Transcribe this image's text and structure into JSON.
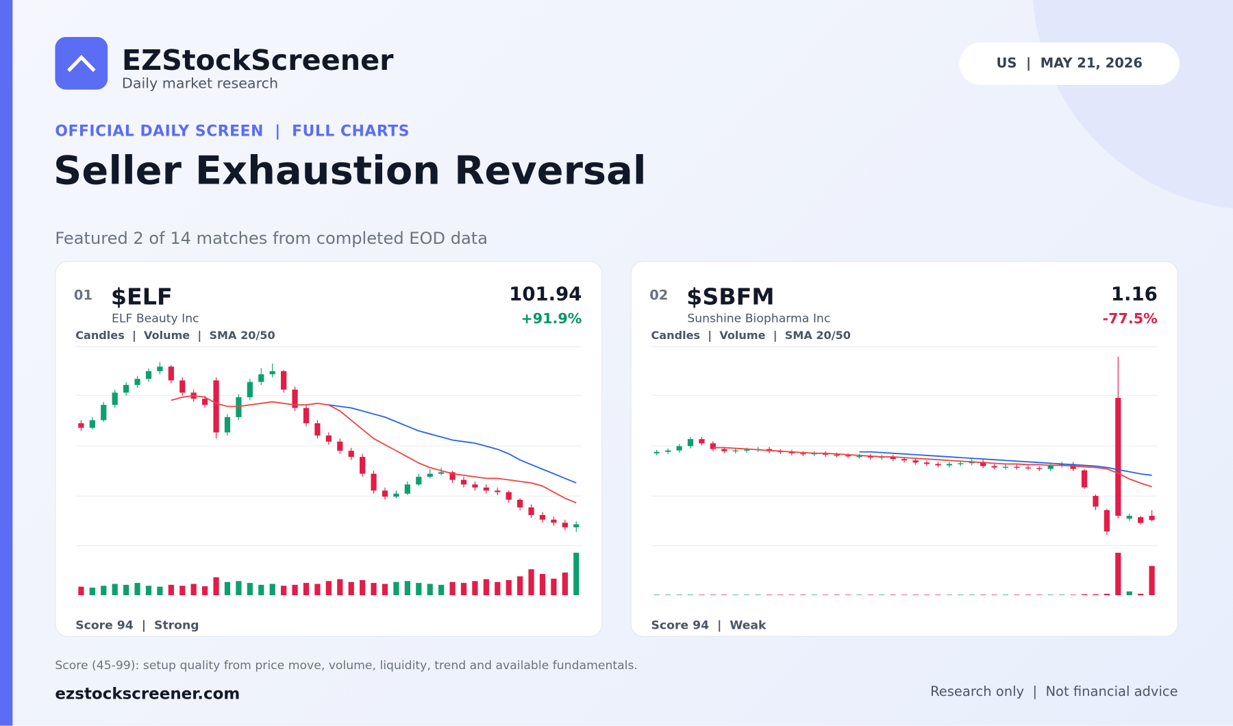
{
  "header": {
    "brand": "EZStockScreener",
    "tagline": "Daily market research",
    "pill": "US  |  MAY 21, 2026"
  },
  "screen": {
    "kicker": "OFFICIAL DAILY SCREEN  |  FULL CHARTS",
    "title": "Seller Exhaustion Reversal",
    "subtitle": "Featured 2 of 14 matches from completed EOD data"
  },
  "cards": [
    {
      "rank": "01",
      "ticker": "$ELF",
      "company": "ELF Beauty Inc",
      "price": "101.94",
      "change": "+91.9%",
      "legend": "Candles  |  Volume  |  SMA 20/50",
      "score": "Score 94  |  Strong"
    },
    {
      "rank": "02",
      "ticker": "$SBFM",
      "company": "Sunshine Biopharma Inc",
      "price": "1.16",
      "change": "-77.5%",
      "legend": "Candles  |  Volume  |  SMA 20/50",
      "score": "Score 94  |  Weak"
    }
  ],
  "chart_data": [
    {
      "type": "candlestick",
      "up_color": "#0e9f6e",
      "down_color": "#e11d48",
      "sma20_color": "#ef4444",
      "sma50_color": "#2563eb",
      "ylim": [
        88,
        218
      ],
      "vlim": [
        0,
        100
      ],
      "ohlc": [
        [
          168,
          170,
          163,
          165
        ],
        [
          165,
          172,
          164,
          170
        ],
        [
          170,
          182,
          169,
          180
        ],
        [
          180,
          190,
          178,
          188
        ],
        [
          188,
          195,
          186,
          193
        ],
        [
          193,
          199,
          191,
          197
        ],
        [
          197,
          204,
          195,
          202
        ],
        [
          202,
          208,
          200,
          205
        ],
        [
          205,
          206,
          194,
          196
        ],
        [
          196,
          198,
          186,
          188
        ],
        [
          188,
          190,
          182,
          184
        ],
        [
          184,
          186,
          178,
          180
        ],
        [
          196,
          198,
          158,
          162
        ],
        [
          162,
          174,
          160,
          172
        ],
        [
          172,
          187,
          170,
          185
        ],
        [
          185,
          197,
          183,
          195
        ],
        [
          195,
          204,
          193,
          200
        ],
        [
          200,
          207,
          198,
          202
        ],
        [
          202,
          203,
          188,
          190
        ],
        [
          190,
          192,
          176,
          178
        ],
        [
          178,
          180,
          166,
          168
        ],
        [
          168,
          170,
          158,
          160
        ],
        [
          160,
          162,
          154,
          156
        ],
        [
          156,
          158,
          148,
          150
        ],
        [
          150,
          152,
          144,
          146
        ],
        [
          146,
          148,
          133,
          135
        ],
        [
          135,
          137,
          122,
          124
        ],
        [
          124,
          126,
          118,
          120
        ],
        [
          120,
          124,
          119,
          122
        ],
        [
          122,
          130,
          121,
          128
        ],
        [
          128,
          135,
          127,
          133
        ],
        [
          133,
          138,
          132,
          135
        ],
        [
          135,
          139,
          134,
          136
        ],
        [
          136,
          137,
          129,
          131
        ],
        [
          131,
          133,
          126,
          128
        ],
        [
          128,
          130,
          124,
          126
        ],
        [
          126,
          128,
          122,
          124
        ],
        [
          124,
          126,
          121,
          123
        ],
        [
          123,
          124,
          116,
          118
        ],
        [
          118,
          119,
          111,
          113
        ],
        [
          113,
          115,
          106,
          108
        ],
        [
          108,
          110,
          103,
          105
        ],
        [
          105,
          107,
          101,
          103
        ],
        [
          103,
          105,
          98,
          100
        ],
        [
          100,
          104,
          97,
          101.94
        ]
      ],
      "volume": [
        18,
        16,
        20,
        24,
        22,
        26,
        20,
        18,
        22,
        20,
        24,
        19,
        38,
        28,
        30,
        26,
        22,
        24,
        20,
        22,
        26,
        24,
        30,
        34,
        28,
        32,
        26,
        24,
        28,
        30,
        26,
        24,
        22,
        28,
        26,
        30,
        34,
        28,
        32,
        40,
        55,
        45,
        35,
        48,
        90
      ],
      "sma20": [
        null,
        null,
        null,
        null,
        null,
        null,
        null,
        null,
        183,
        185,
        186,
        185,
        181,
        179,
        179,
        180,
        181,
        182,
        181,
        180,
        180,
        181,
        180,
        176,
        170,
        164,
        158,
        154,
        150,
        146,
        142,
        139,
        137,
        135,
        134,
        133,
        132,
        132,
        131,
        130,
        129,
        127,
        123,
        119,
        116
      ],
      "sma50": [
        null,
        null,
        null,
        null,
        null,
        null,
        null,
        null,
        null,
        null,
        null,
        null,
        null,
        null,
        null,
        null,
        null,
        null,
        null,
        null,
        null,
        null,
        180,
        179,
        178,
        176,
        174,
        172,
        169,
        166,
        163,
        161,
        159,
        157,
        156,
        155,
        153,
        151,
        148,
        144,
        141,
        138,
        135,
        132,
        129
      ]
    },
    {
      "type": "candlestick",
      "up_color": "#0e9f6e",
      "down_color": "#e11d48",
      "sma20_color": "#ef4444",
      "sma50_color": "#2563eb",
      "ylim": [
        0.8,
        3.6
      ],
      "vlim": [
        0,
        100
      ],
      "ohlc": [
        [
          2.1,
          2.15,
          2.07,
          2.12
        ],
        [
          2.12,
          2.17,
          2.09,
          2.14
        ],
        [
          2.14,
          2.23,
          2.11,
          2.2
        ],
        [
          2.2,
          2.33,
          2.17,
          2.3
        ],
        [
          2.3,
          2.33,
          2.21,
          2.24
        ],
        [
          2.24,
          2.27,
          2.13,
          2.16
        ],
        [
          2.16,
          2.19,
          2.1,
          2.13
        ],
        [
          2.13,
          2.17,
          2.1,
          2.14
        ],
        [
          2.14,
          2.18,
          2.11,
          2.15
        ],
        [
          2.15,
          2.19,
          2.12,
          2.16
        ],
        [
          2.16,
          2.19,
          2.1,
          2.13
        ],
        [
          2.13,
          2.16,
          2.09,
          2.12
        ],
        [
          2.12,
          2.15,
          2.07,
          2.1
        ],
        [
          2.1,
          2.13,
          2.06,
          2.09
        ],
        [
          2.09,
          2.13,
          2.06,
          2.1
        ],
        [
          2.1,
          2.13,
          2.05,
          2.08
        ],
        [
          2.08,
          2.11,
          2.04,
          2.07
        ],
        [
          2.07,
          2.1,
          2.03,
          2.06
        ],
        [
          2.06,
          2.09,
          2.03,
          2.06
        ],
        [
          2.06,
          2.09,
          2.01,
          2.04
        ],
        [
          2.04,
          2.08,
          2.01,
          2.05
        ],
        [
          2.05,
          2.08,
          1.99,
          2.02
        ],
        [
          2.02,
          2.05,
          1.97,
          2.0
        ],
        [
          2.0,
          2.03,
          1.94,
          1.97
        ],
        [
          1.97,
          2.0,
          1.92,
          1.95
        ],
        [
          1.95,
          1.98,
          1.9,
          1.93
        ],
        [
          1.93,
          1.98,
          1.9,
          1.95
        ],
        [
          1.95,
          1.99,
          1.92,
          1.96
        ],
        [
          1.96,
          2.03,
          1.93,
          1.98
        ],
        [
          1.98,
          2.01,
          1.89,
          1.92
        ],
        [
          1.92,
          1.95,
          1.87,
          1.9
        ],
        [
          1.9,
          1.94,
          1.87,
          1.91
        ],
        [
          1.91,
          1.94,
          1.87,
          1.9
        ],
        [
          1.9,
          1.93,
          1.86,
          1.89
        ],
        [
          1.89,
          1.92,
          1.85,
          1.88
        ],
        [
          1.88,
          1.96,
          1.85,
          1.93
        ],
        [
          1.93,
          1.98,
          1.9,
          1.95
        ],
        [
          1.95,
          1.98,
          1.85,
          1.88
        ],
        [
          1.86,
          1.88,
          1.6,
          1.62
        ],
        [
          1.5,
          1.52,
          1.3,
          1.35
        ],
        [
          1.3,
          1.32,
          0.95,
          1.0
        ],
        [
          2.88,
          3.46,
          1.18,
          1.22
        ],
        [
          1.18,
          1.25,
          1.15,
          1.22
        ],
        [
          1.2,
          1.22,
          1.1,
          1.12
        ],
        [
          1.22,
          1.3,
          1.14,
          1.16
        ]
      ],
      "volume": [
        1,
        1,
        1,
        1,
        1,
        1,
        1,
        1,
        1,
        1,
        1,
        1,
        1,
        1,
        1,
        1,
        1,
        1,
        1,
        1,
        1,
        1,
        1,
        1,
        1,
        1,
        1,
        1,
        1,
        1,
        1,
        1,
        1,
        1,
        1,
        1,
        1,
        1,
        2,
        2,
        3,
        90,
        8,
        3,
        62
      ],
      "sma20": [
        null,
        null,
        null,
        null,
        null,
        2.18,
        2.18,
        2.17,
        2.16,
        2.15,
        2.14,
        2.13,
        2.12,
        2.11,
        2.1,
        2.1,
        2.09,
        2.08,
        2.07,
        2.06,
        2.05,
        2.05,
        2.04,
        2.03,
        2.02,
        2.01,
        2.0,
        1.99,
        1.98,
        1.97,
        1.96,
        1.95,
        1.95,
        1.94,
        1.94,
        1.93,
        1.93,
        1.92,
        1.91,
        1.9,
        1.88,
        1.82,
        1.74,
        1.68,
        1.63
      ],
      "sma50": [
        null,
        null,
        null,
        null,
        null,
        null,
        null,
        null,
        null,
        null,
        null,
        null,
        null,
        null,
        null,
        null,
        null,
        null,
        2.12,
        2.12,
        2.11,
        2.1,
        2.09,
        2.08,
        2.07,
        2.06,
        2.05,
        2.04,
        2.03,
        2.02,
        2.01,
        2.0,
        1.99,
        1.98,
        1.97,
        1.96,
        1.95,
        1.94,
        1.93,
        1.92,
        1.9,
        1.87,
        1.84,
        1.81,
        1.79
      ]
    }
  ],
  "footer": {
    "note": "Score (45-99): setup quality from price move, volume, liquidity, trend and available fundamentals.",
    "site": "ezstockscreener.com",
    "disclaimer": "Research only  |  Not financial advice"
  }
}
